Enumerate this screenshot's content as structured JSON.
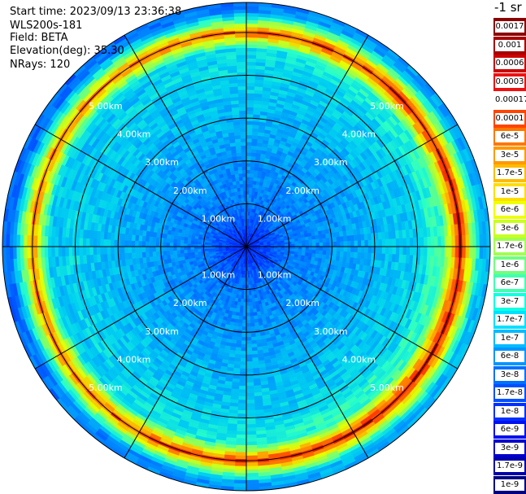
{
  "header": {
    "start_time": "Start time: 2023/09/13 23:36:38",
    "instrument": "WLS200s-181",
    "field": "Field: BETA",
    "elevation": "Elevation(deg): 35.30",
    "nrays": "NRays: 120"
  },
  "colorbar": {
    "unit_label": "-1 sr",
    "labels": [
      "0.0017",
      "0.001",
      "0.0006",
      "0.0003",
      "0.00017",
      "0.0001",
      "6e-5",
      "3e-5",
      "1.7e-5",
      "1e-5",
      "6e-6",
      "3e-6",
      "1.7e-6",
      "1e-6",
      "6e-7",
      "3e-7",
      "1.7e-7",
      "1e-7",
      "6e-8",
      "3e-8",
      "1.7e-8",
      "1e-8",
      "6e-9",
      "3e-9",
      "1.7e-9",
      "1e-9"
    ],
    "colors": [
      "#8b0000",
      "#a80000",
      "#cc0000",
      "#ee1111",
      "#ffffff",
      "#ff4400",
      "#ff7700",
      "#ff9900",
      "#ffbb00",
      "#ffdd00",
      "#eeff00",
      "#c8ff20",
      "#a0ff50",
      "#70ff80",
      "#40ffb0",
      "#10ffe0",
      "#00e0ff",
      "#00bbff",
      "#0095ff",
      "#0070ff",
      "#0050ff",
      "#0030ff",
      "#0010ee",
      "#0000cc",
      "#0000aa",
      "#000080"
    ]
  },
  "chart_data": {
    "type": "polar",
    "field": "BETA",
    "range_rings_km": [
      1,
      2,
      3,
      4,
      5
    ],
    "ring_labels": [
      "1.00km",
      "2.00km",
      "3.00km",
      "4.00km",
      "5.00km"
    ],
    "max_range_km": 5.7,
    "nrays": 120,
    "spokes_deg": [
      0,
      30,
      60,
      90,
      120,
      150,
      180,
      210,
      240,
      270,
      300,
      330
    ],
    "log10_beta_profile": {
      "range_km": [
        0,
        1,
        2,
        3,
        4,
        4.6,
        5.0,
        5.2,
        5.5,
        5.7
      ],
      "value": [
        -8.2,
        -7.6,
        -7.4,
        -7.2,
        -7.0,
        -6.8,
        -5.0,
        -6.0,
        -7.4,
        -7.5
      ]
    },
    "colorbar_scale": "log",
    "colorbar_range": [
      "1e-9",
      "0.0017"
    ]
  }
}
